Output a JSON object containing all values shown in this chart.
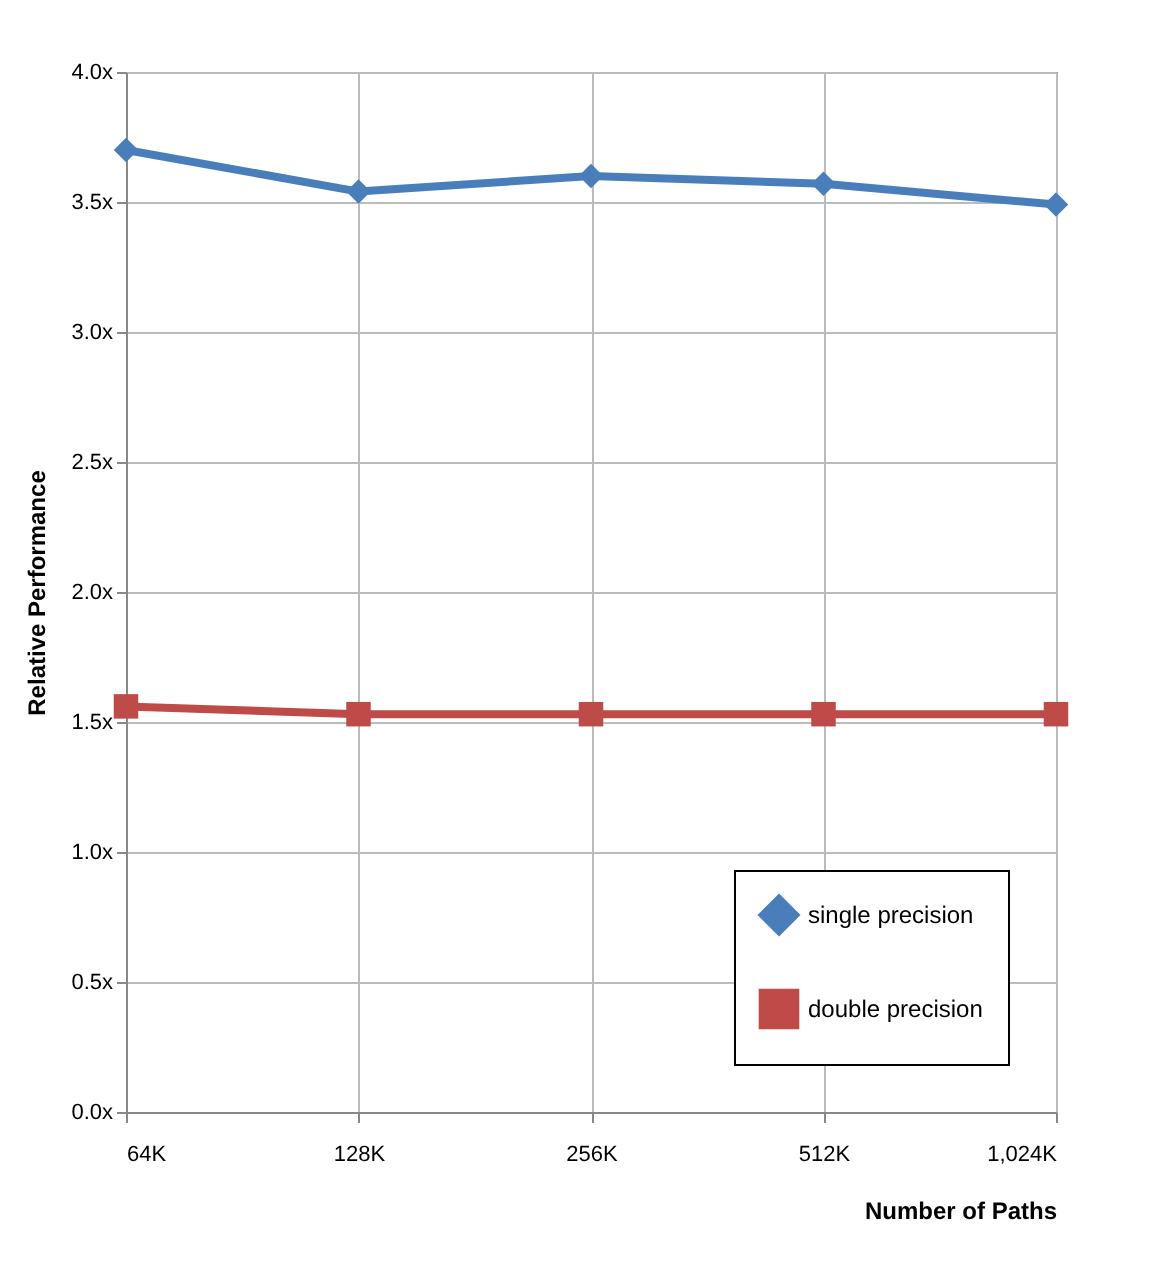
{
  "chart_data": {
    "type": "line",
    "xlabel": "Number of Paths",
    "ylabel": "Relative Performance",
    "categories": [
      "64K",
      "128K",
      "256K",
      "512K",
      "1,024K"
    ],
    "series": [
      {
        "name": "single precision",
        "color": "#4a7ebb",
        "marker": "diamond",
        "values": [
          3.7,
          3.54,
          3.6,
          3.57,
          3.49
        ]
      },
      {
        "name": "double precision",
        "color": "#be4b48",
        "marker": "square",
        "values": [
          1.56,
          1.53,
          1.53,
          1.53,
          1.53
        ]
      }
    ],
    "ylim": [
      0,
      4
    ],
    "yticks": [
      {
        "value": 0,
        "label": "0.0x"
      },
      {
        "value": 0.5,
        "label": "0.5x"
      },
      {
        "value": 1,
        "label": "1.0x"
      },
      {
        "value": 1.5,
        "label": "1.5x"
      },
      {
        "value": 2,
        "label": "2.0x"
      },
      {
        "value": 2.5,
        "label": "2.5x"
      },
      {
        "value": 3,
        "label": "3.0x"
      },
      {
        "value": 3.5,
        "label": "3.5x"
      },
      {
        "value": 4,
        "label": "4.0x"
      }
    ],
    "grid": true,
    "legend": "bottom right"
  }
}
